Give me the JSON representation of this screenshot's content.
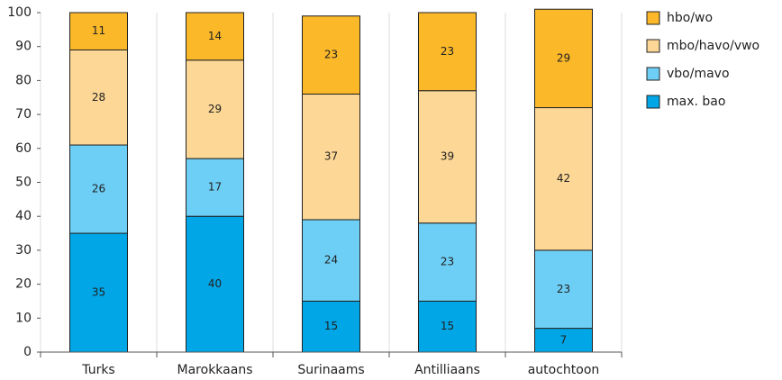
{
  "chart_data": {
    "type": "stacked_bar",
    "categories": [
      "Turks",
      "Marokkaans",
      "Surinaams",
      "Antilliaans",
      "autochtoon"
    ],
    "series": [
      {
        "name": "max. bao",
        "color": "#00a6e6",
        "values": [
          35,
          40,
          15,
          15,
          7
        ]
      },
      {
        "name": "vbo/mavo",
        "color": "#6dcff6",
        "values": [
          26,
          17,
          24,
          23,
          23
        ]
      },
      {
        "name": "mbo/havo/vwo",
        "color": "#fdd795",
        "values": [
          28,
          29,
          37,
          39,
          42
        ]
      },
      {
        "name": "hbo/wo",
        "color": "#fbb829",
        "values": [
          11,
          14,
          23,
          23,
          29
        ]
      }
    ],
    "ylim": [
      0,
      100
    ],
    "yticks": [
      0,
      10,
      20,
      30,
      40,
      50,
      60,
      70,
      80,
      90,
      100
    ],
    "legend": "right"
  }
}
